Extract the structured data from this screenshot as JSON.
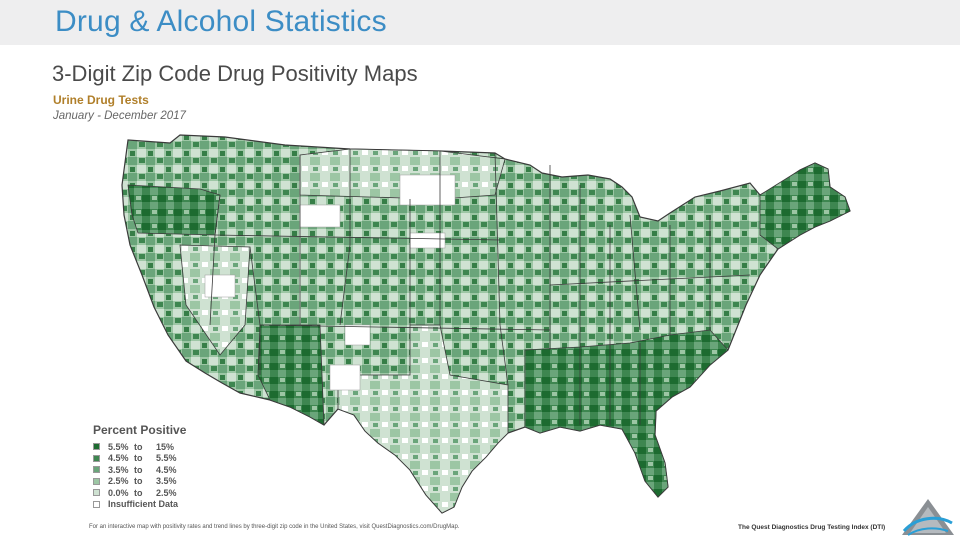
{
  "slide": {
    "title": "Drug & Alcohol Statistics"
  },
  "map": {
    "heading": "3-Digit Zip Code Drug Positivity Maps",
    "subheading": "Urine Drug Tests",
    "period": "January - December 2017"
  },
  "legend": {
    "title": "Percent Positive",
    "items": [
      {
        "from": "5.5%",
        "to_word": "to",
        "to": "15%",
        "color": "#1d6b30"
      },
      {
        "from": "4.5%",
        "to_word": "to",
        "to": "5.5%",
        "color": "#3e8650"
      },
      {
        "from": "3.5%",
        "to_word": "to",
        "to": "4.5%",
        "color": "#6aa57a"
      },
      {
        "from": "2.5%",
        "to_word": "to",
        "to": "3.5%",
        "color": "#9cc6a4"
      },
      {
        "from": "0.0%",
        "to_word": "to",
        "to": "2.5%",
        "color": "#cfe2d2"
      },
      {
        "label": "Insufficient Data",
        "color": "#ffffff"
      }
    ]
  },
  "footer": {
    "note": "For an interactive map with positivity rates and trend lines by three-digit zip code in the United States, visit QuestDiagnostics.com/DrugMap.",
    "source": "The Quest Diagnostics Drug Testing Index (DTI)"
  },
  "colors": {
    "title": "#3c8dc5",
    "level5": "#1d6b30",
    "level4": "#3e8650",
    "level3": "#6aa57a",
    "level2": "#9cc6a4",
    "level1": "#cfe2d2",
    "nodata": "#ffffff",
    "border": "#3a3a3a"
  }
}
